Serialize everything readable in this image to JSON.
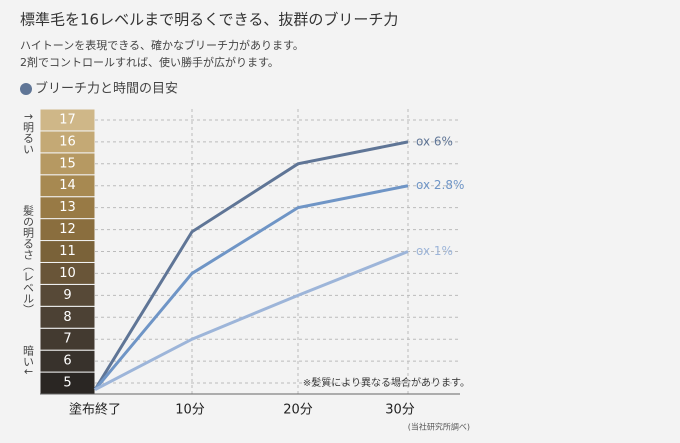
{
  "header": {
    "title": "標準毛を16レベルまで明るくできる、抜群のブリーチ力",
    "lines": [
      "ハイトーンを表現できる、確かなブリーチ力があります。",
      "2剤でコントロールすれば、使い勝手が広がります。"
    ],
    "section": "ブリーチ力と時間の目安"
  },
  "chart_data": {
    "type": "line",
    "categories": [
      "塗布終了",
      "10分",
      "20分",
      "30分"
    ],
    "y_labels": [
      "↑明るい",
      "髪の明るさ（レベル）",
      "暗い↓"
    ],
    "ylim": [
      4.5,
      17.5
    ],
    "yticks": [
      5,
      6,
      7,
      8,
      9,
      10,
      11,
      12,
      13,
      14,
      15,
      16,
      17
    ],
    "band_colors": [
      "#2a2623",
      "#38322c",
      "#433a30",
      "#4c4134",
      "#574937",
      "#695538",
      "#7a6239",
      "#8a6e3e",
      "#987a45",
      "#a78951",
      "#b69962",
      "#c4a975",
      "#cfb788"
    ],
    "grid": true,
    "series": [
      {
        "name": "ox 6%",
        "color": "#5f7596",
        "values": [
          4.7,
          11.9,
          15,
          16
        ]
      },
      {
        "name": "ox 2.8%",
        "color": "#6f95c6",
        "values": [
          4.7,
          10,
          13,
          14
        ]
      },
      {
        "name": "ox 1%",
        "color": "#9db5d9",
        "values": [
          4.7,
          7,
          9,
          11
        ]
      }
    ],
    "note": "※髪質により異なる場合があります。",
    "source": "(当社研究所調べ)"
  }
}
